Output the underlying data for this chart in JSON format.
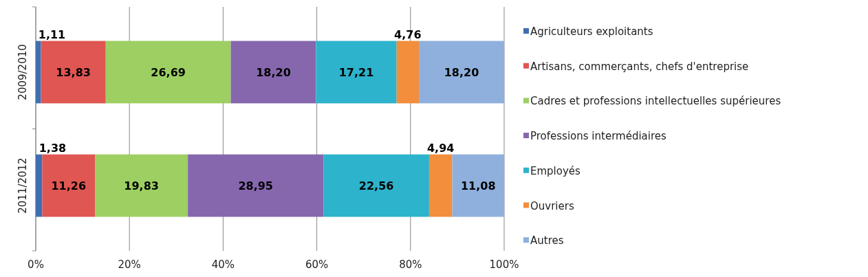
{
  "chart_data": {
    "type": "bar",
    "orientation": "horizontal",
    "stacked": true,
    "categories": [
      "2009/2010",
      "2011/2012"
    ],
    "series": [
      {
        "name": "Agriculteurs exploitants",
        "color": "#3f6fb0",
        "values": [
          1.11,
          1.38
        ],
        "value_labels": [
          "1,11",
          "1,38"
        ]
      },
      {
        "name": "Artisans, commerçants, chefs d'entreprise",
        "color": "#e05652",
        "values": [
          13.83,
          11.26
        ],
        "value_labels": [
          "13,83",
          "11,26"
        ]
      },
      {
        "name": "Cadres et professions intellectuelles supérieures",
        "color": "#9dcf62",
        "values": [
          26.69,
          19.83
        ],
        "value_labels": [
          "26,69",
          "19,83"
        ]
      },
      {
        "name": "Professions intermédiaires",
        "color": "#8667ae",
        "values": [
          18.2,
          28.95
        ],
        "value_labels": [
          "18,20",
          "28,95"
        ]
      },
      {
        "name": "Employés",
        "color": "#2db3cc",
        "values": [
          17.21,
          22.56
        ],
        "value_labels": [
          "17,21",
          "22,56"
        ]
      },
      {
        "name": "Ouvriers",
        "color": "#f28e3c",
        "values": [
          4.76,
          4.94
        ],
        "value_labels": [
          "4,76",
          "4,94"
        ]
      },
      {
        "name": "Autres",
        "color": "#8fb0dc",
        "values": [
          18.2,
          11.08
        ],
        "value_labels": [
          "18,20",
          "11,08"
        ]
      }
    ],
    "xlim": [
      0,
      100
    ],
    "xticks": [
      {
        "value": 0,
        "label": "0%"
      },
      {
        "value": 20,
        "label": "20%"
      },
      {
        "value": 40,
        "label": "40%"
      },
      {
        "value": 60,
        "label": "60%"
      },
      {
        "value": 80,
        "label": "80%"
      },
      {
        "value": 100,
        "label": "100%"
      }
    ],
    "grid": "x",
    "legend": "right"
  }
}
